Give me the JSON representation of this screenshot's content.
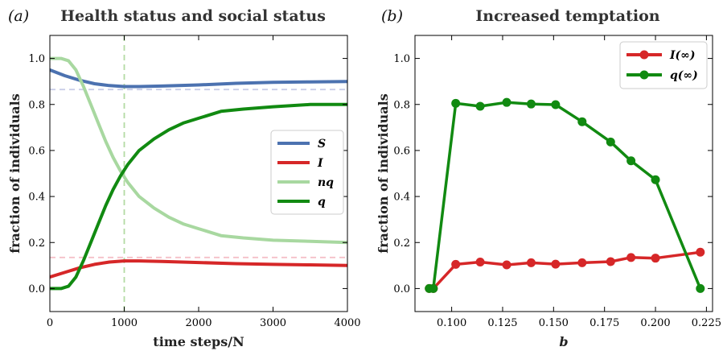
{
  "chart_data": [
    {
      "type": "line",
      "panel_label": "(a)",
      "title": "Health status and social status",
      "xlabel": "time steps/N",
      "ylabel": "fraction of individuals",
      "xlim": [
        0,
        4000
      ],
      "ylim": [
        -0.1,
        1.1
      ],
      "xticks": [
        0,
        1000,
        2000,
        3000,
        4000
      ],
      "xtick_labels": [
        "0",
        "1000",
        "2000",
        "3000",
        "4000"
      ],
      "yticks": [
        0.0,
        0.2,
        0.4,
        0.6,
        0.8,
        1.0
      ],
      "ytick_labels": [
        "0.0",
        "0.2",
        "0.4",
        "0.6",
        "0.8",
        "1.0"
      ],
      "grid": false,
      "legend_position": "center-right",
      "reference_lines": [
        {
          "orientation": "horizontal",
          "value": 0.865,
          "color": "#c9cde8"
        },
        {
          "orientation": "horizontal",
          "value": 0.135,
          "color": "#f5c0c8"
        },
        {
          "orientation": "vertical",
          "value": 1000,
          "color": "#b3dba3"
        }
      ],
      "series": [
        {
          "name": "S",
          "color": "#4c72b0",
          "x": [
            0,
            200,
            400,
            600,
            800,
            1000,
            1200,
            1500,
            2000,
            2500,
            3000,
            3500,
            4000
          ],
          "y": [
            0.95,
            0.925,
            0.905,
            0.89,
            0.882,
            0.878,
            0.878,
            0.88,
            0.885,
            0.892,
            0.896,
            0.898,
            0.9
          ]
        },
        {
          "name": "I",
          "color": "#d62728",
          "x": [
            0,
            200,
            400,
            600,
            800,
            1000,
            1200,
            1500,
            2000,
            2500,
            3000,
            3500,
            4000
          ],
          "y": [
            0.05,
            0.07,
            0.09,
            0.105,
            0.115,
            0.12,
            0.12,
            0.118,
            0.113,
            0.108,
            0.105,
            0.103,
            0.1
          ]
        },
        {
          "name": "nq",
          "color": "#a8d8a0",
          "x": [
            0,
            150,
            250,
            350,
            450,
            550,
            650,
            750,
            850,
            950,
            1050,
            1200,
            1400,
            1600,
            1800,
            2000,
            2300,
            2600,
            3000,
            3500,
            4000
          ],
          "y": [
            1.0,
            1.0,
            0.99,
            0.95,
            0.88,
            0.8,
            0.72,
            0.64,
            0.57,
            0.51,
            0.46,
            0.4,
            0.35,
            0.31,
            0.28,
            0.26,
            0.23,
            0.22,
            0.21,
            0.205,
            0.2
          ]
        },
        {
          "name": "q",
          "color": "#118a11",
          "x": [
            0,
            150,
            250,
            350,
            450,
            550,
            650,
            750,
            850,
            950,
            1050,
            1200,
            1400,
            1600,
            1800,
            2000,
            2300,
            2600,
            3000,
            3500,
            4000
          ],
          "y": [
            0.0,
            0.0,
            0.01,
            0.05,
            0.12,
            0.2,
            0.28,
            0.36,
            0.43,
            0.49,
            0.54,
            0.6,
            0.65,
            0.69,
            0.72,
            0.74,
            0.77,
            0.78,
            0.79,
            0.8,
            0.8
          ]
        }
      ]
    },
    {
      "type": "line",
      "panel_label": "(b)",
      "title": "Increased temptation",
      "xlabel": "b",
      "ylabel": "fraction of individuals",
      "xlim": [
        0.082,
        0.228
      ],
      "ylim": [
        -0.1,
        1.1
      ],
      "xticks": [
        0.1,
        0.125,
        0.15,
        0.175,
        0.2,
        0.225
      ],
      "xtick_labels": [
        "0.100",
        "0.125",
        "0.150",
        "0.175",
        "0.200",
        "0.225"
      ],
      "yticks": [
        0.0,
        0.2,
        0.4,
        0.6,
        0.8,
        1.0
      ],
      "ytick_labels": [
        "0.0",
        "0.2",
        "0.4",
        "0.6",
        "0.8",
        "1.0"
      ],
      "grid": false,
      "legend_position": "top-right",
      "series": [
        {
          "name": "I(∞)",
          "color": "#d62728",
          "x": [
            0.089,
            0.091,
            0.102,
            0.114,
            0.127,
            0.139,
            0.151,
            0.164,
            0.178,
            0.188,
            0.2,
            0.222
          ],
          "y": [
            0.0,
            0.0,
            0.105,
            0.115,
            0.103,
            0.112,
            0.106,
            0.112,
            0.117,
            0.135,
            0.132,
            0.158
          ]
        },
        {
          "name": "q(∞)",
          "color": "#118a11",
          "x": [
            0.089,
            0.091,
            0.102,
            0.114,
            0.127,
            0.139,
            0.151,
            0.164,
            0.178,
            0.188,
            0.2,
            0.222
          ],
          "y": [
            0.0,
            0.0,
            0.805,
            0.792,
            0.809,
            0.802,
            0.799,
            0.725,
            0.637,
            0.555,
            0.473,
            0.0
          ]
        }
      ]
    }
  ]
}
